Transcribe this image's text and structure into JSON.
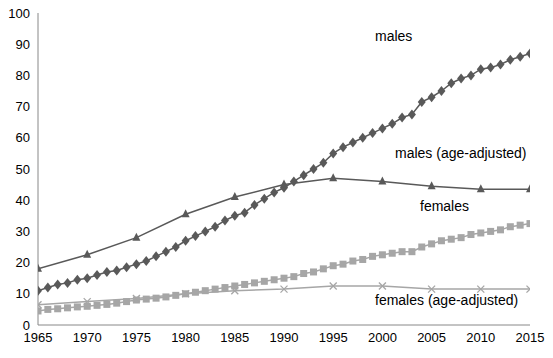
{
  "chart_data": {
    "type": "line",
    "xlim": [
      1965,
      2015
    ],
    "xticks": [
      1965,
      1970,
      1975,
      1980,
      1985,
      1990,
      1995,
      2000,
      2005,
      2010,
      2015
    ],
    "ylim": [
      0,
      100
    ],
    "yticks": [
      0,
      10,
      20,
      30,
      40,
      50,
      60,
      70,
      80,
      90,
      100
    ],
    "grid": false,
    "series": [
      {
        "name": "males",
        "color": "#595959",
        "marker": "diamond",
        "x": [
          1965,
          1966,
          1967,
          1968,
          1969,
          1970,
          1971,
          1972,
          1973,
          1974,
          1975,
          1976,
          1977,
          1978,
          1979,
          1980,
          1981,
          1982,
          1983,
          1984,
          1985,
          1986,
          1987,
          1988,
          1989,
          1990,
          1991,
          1992,
          1993,
          1994,
          1995,
          1996,
          1997,
          1998,
          1999,
          2000,
          2001,
          2002,
          2003,
          2004,
          2005,
          2006,
          2007,
          2008,
          2009,
          2010,
          2011,
          2012,
          2013,
          2014,
          2015
        ],
        "values": [
          11,
          12,
          13,
          13.5,
          14.5,
          15,
          16,
          17,
          17.5,
          18.5,
          19.5,
          20.5,
          22,
          23.5,
          25,
          27,
          28.5,
          30,
          31.5,
          33.5,
          35,
          36,
          38.5,
          40.5,
          42.5,
          44,
          46,
          48,
          50,
          52,
          55,
          57,
          58.5,
          60,
          61.5,
          63,
          64.5,
          66.5,
          67.5,
          71.5,
          73,
          75,
          77.5,
          79,
          80,
          82,
          82.5,
          83.5,
          85,
          86,
          87
        ]
      },
      {
        "name": "males (age-adjusted)",
        "color": "#595959",
        "marker": "triangle",
        "x": [
          1965,
          1970,
          1975,
          1980,
          1985,
          1990,
          1995,
          2000,
          2005,
          2010,
          2015
        ],
        "values": [
          18,
          22.5,
          28,
          35.5,
          41,
          45,
          47,
          46,
          44.5,
          43.5,
          43.5
        ]
      },
      {
        "name": "females",
        "color": "#a6a6a6",
        "marker": "square",
        "x": [
          1965,
          1966,
          1967,
          1968,
          1969,
          1970,
          1971,
          1972,
          1973,
          1974,
          1975,
          1976,
          1977,
          1978,
          1979,
          1980,
          1981,
          1982,
          1983,
          1984,
          1985,
          1986,
          1987,
          1988,
          1989,
          1990,
          1991,
          1992,
          1993,
          1994,
          1995,
          1996,
          1997,
          1998,
          1999,
          2000,
          2001,
          2002,
          2003,
          2004,
          2005,
          2006,
          2007,
          2008,
          2009,
          2010,
          2011,
          2012,
          2013,
          2014,
          2015
        ],
        "values": [
          4.5,
          5,
          5.2,
          5.5,
          5.8,
          6,
          6.3,
          6.6,
          7,
          7.5,
          8,
          8.3,
          8.6,
          9,
          9.5,
          10,
          10.5,
          11,
          11.5,
          12,
          12.5,
          13,
          13.5,
          14,
          14.5,
          15,
          15.5,
          16.5,
          17,
          18,
          19,
          19.5,
          20.5,
          21,
          22,
          22.5,
          23,
          23.5,
          23.5,
          25,
          26,
          27,
          27.5,
          28,
          29,
          29.5,
          30,
          30.5,
          31.5,
          32,
          32.5
        ]
      },
      {
        "name": "females (age-adjusted)",
        "color": "#a6a6a6",
        "marker": "x",
        "x": [
          1965,
          1970,
          1975,
          1980,
          1985,
          1990,
          1995,
          2000,
          2005,
          2010,
          2015
        ],
        "values": [
          6.5,
          7.5,
          8.5,
          10,
          11,
          11.5,
          12.5,
          12.5,
          11.5,
          11.5,
          11.5
        ]
      }
    ]
  }
}
